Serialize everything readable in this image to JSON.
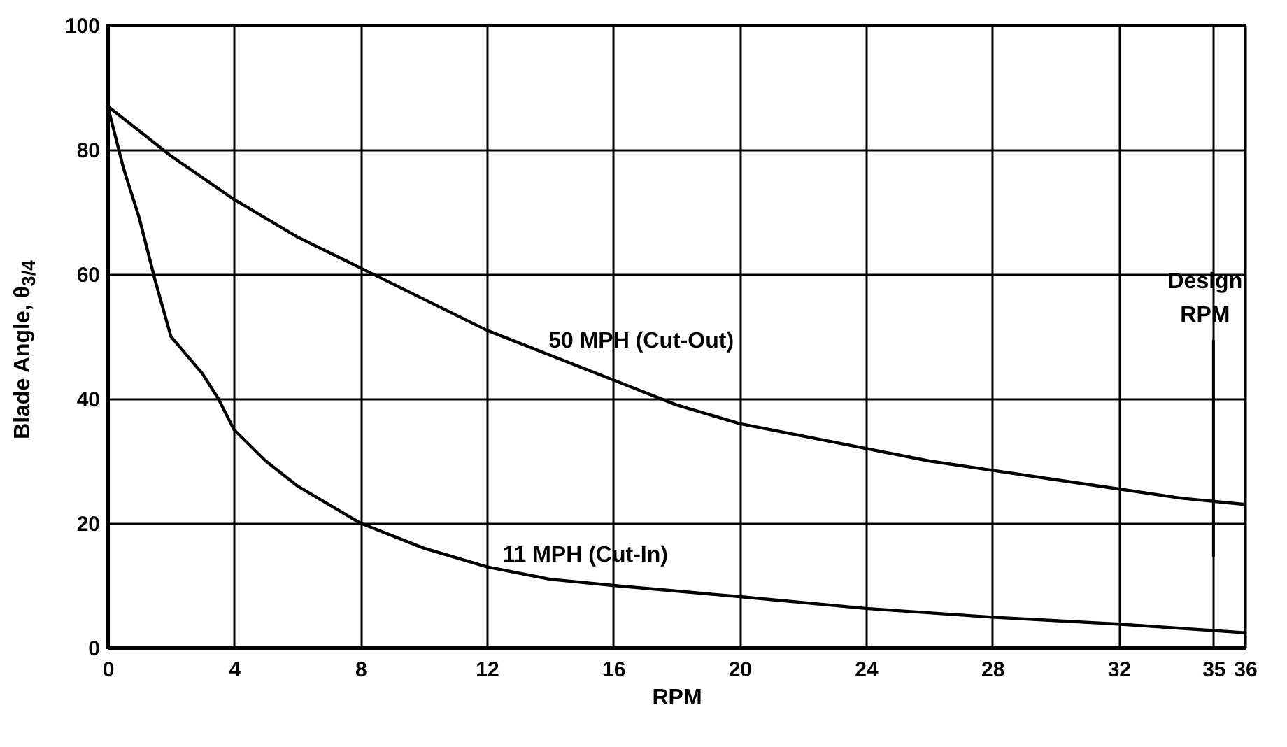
{
  "chart_data": {
    "type": "line",
    "xlabel": "RPM",
    "ylabel": "Blade Angle, θ$_{3/4}$",
    "xlim": [
      0,
      36
    ],
    "xticks": [
      0,
      4,
      8,
      12,
      16,
      20,
      24,
      28,
      32,
      35,
      36
    ],
    "ylim": [
      0,
      100
    ],
    "yticks": [
      0,
      20,
      40,
      60,
      80,
      100
    ],
    "grid": true,
    "series": [
      {
        "name": "50 MPH (Cut-Out)",
        "color": "#000000",
        "x": [
          0,
          1,
          2,
          4,
          6,
          8,
          10,
          12,
          14,
          16,
          18,
          20,
          22,
          24,
          26,
          28,
          30,
          32,
          34,
          36
        ],
        "values": [
          87,
          83,
          79,
          72,
          66,
          61,
          56,
          51,
          47,
          43,
          39,
          36,
          34,
          32,
          30,
          28.5,
          27,
          25.5,
          24,
          23
        ]
      },
      {
        "name": "11 MPH (Cut-In)",
        "color": "#000000",
        "x": [
          0,
          0.5,
          1,
          1.5,
          2,
          3,
          3.5,
          4,
          5,
          6,
          7,
          8,
          10,
          12,
          14,
          16,
          20,
          24,
          28,
          32,
          36
        ],
        "values": [
          87,
          77,
          69,
          59,
          50,
          44,
          40,
          35,
          30,
          26,
          23,
          20,
          16,
          13,
          11,
          10,
          8.2,
          6.3,
          4.9,
          3.8,
          2.4
        ]
      }
    ],
    "ref_lines": [
      {
        "axis": "x",
        "value": 35,
        "label": "Design RPM"
      }
    ]
  }
}
